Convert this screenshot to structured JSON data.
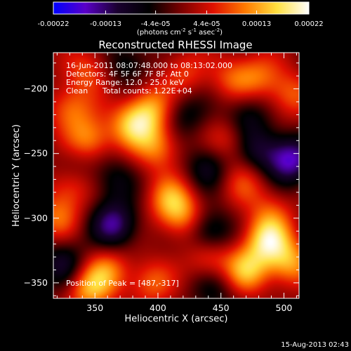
{
  "colorbar": {
    "tick_labels": [
      "-0.00022",
      "-0.00013",
      "-4.4e-05",
      "4.4e-05",
      "0.00013",
      "0.00022"
    ],
    "tick_values": [
      -0.00022,
      -0.00013,
      -4.4e-05,
      4.4e-05,
      0.00013,
      0.00022
    ],
    "range": [
      -0.00022,
      0.00022
    ],
    "unit_label": "(photons cm",
    "unit_exp1": "-2",
    "unit_mid": " s",
    "unit_exp2": "-1",
    "unit_mid2": " asec",
    "unit_exp3": "-2",
    "unit_close": ")",
    "colors": [
      "#0000ff",
      "#5a00c8",
      "#1a0030",
      "#000000",
      "#7a0000",
      "#e01000",
      "#ff7a00",
      "#ffe040",
      "#ffffff"
    ]
  },
  "info": {
    "line1": "16-Jun-2011 08:07:48.000 to 08:13:02.000",
    "line2": "Detectors: 4F 5F 6F 7F 8F, Att 0",
    "line3": "Energy Range: 12.0 - 25.0 keV",
    "line4a": "Clean",
    "line4b": "Total counts: 1.22E+04",
    "peak": "Position of Peak = [487,-317]"
  },
  "footer": {
    "date": "15-Aug-2013 02:43"
  },
  "chart_data": {
    "type": "heatmap",
    "title": "Reconstructed RHESSI Image",
    "xlabel": "Heliocentric X (arcsec)",
    "ylabel": "Heliocentric Y (arcsec)",
    "xlim": [
      317,
      512
    ],
    "ylim": [
      -362,
      -172
    ],
    "xticks": [
      350,
      400,
      450,
      500
    ],
    "yticks": [
      -350,
      -300,
      -250,
      -200
    ],
    "xtick_labels": [
      "350",
      "400",
      "450",
      "500"
    ],
    "ytick_labels": [
      "−350",
      "−300",
      "−250",
      "−200"
    ],
    "peak_position": [
      487,
      -317
    ],
    "sources": [
      {
        "x": 487,
        "y": -317,
        "v": 1.0
      },
      {
        "x": 470,
        "y": -340,
        "v": 0.85
      },
      {
        "x": 505,
        "y": -335,
        "v": 0.75
      },
      {
        "x": 440,
        "y": -330,
        "v": 0.6
      },
      {
        "x": 380,
        "y": -228,
        "v": 0.85
      },
      {
        "x": 395,
        "y": -215,
        "v": 0.7
      },
      {
        "x": 400,
        "y": -245,
        "v": 0.65
      },
      {
        "x": 345,
        "y": -240,
        "v": 0.75
      },
      {
        "x": 330,
        "y": -215,
        "v": 0.6
      },
      {
        "x": 410,
        "y": -285,
        "v": 0.7
      },
      {
        "x": 420,
        "y": -300,
        "v": 0.6
      },
      {
        "x": 345,
        "y": -355,
        "v": 0.75
      },
      {
        "x": 360,
        "y": -340,
        "v": 0.6
      },
      {
        "x": 395,
        "y": -350,
        "v": 0.55
      },
      {
        "x": 320,
        "y": -300,
        "v": 0.55
      },
      {
        "x": 330,
        "y": -275,
        "v": 0.5
      },
      {
        "x": 460,
        "y": -192,
        "v": 0.5
      },
      {
        "x": 455,
        "y": -240,
        "v": 0.45
      },
      {
        "x": 480,
        "y": -190,
        "v": 0.5
      },
      {
        "x": 505,
        "y": -205,
        "v": 0.55
      },
      {
        "x": 345,
        "y": -185,
        "v": 0.5
      },
      {
        "x": 420,
        "y": -188,
        "v": 0.45
      },
      {
        "x": 468,
        "y": -272,
        "v": 0.45
      },
      {
        "x": 490,
        "y": -295,
        "v": 0.4
      },
      {
        "x": 505,
        "y": -255,
        "v": -1.0
      },
      {
        "x": 365,
        "y": -305,
        "v": -0.9
      },
      {
        "x": 440,
        "y": -312,
        "v": -0.75
      },
      {
        "x": 325,
        "y": -335,
        "v": -0.6
      },
      {
        "x": 470,
        "y": -220,
        "v": -0.5
      },
      {
        "x": 440,
        "y": -260,
        "v": -0.55
      },
      {
        "x": 420,
        "y": -220,
        "v": -0.45
      },
      {
        "x": 480,
        "y": -248,
        "v": -0.55
      },
      {
        "x": 365,
        "y": -270,
        "v": -0.4
      },
      {
        "x": 375,
        "y": -180,
        "v": -0.45
      },
      {
        "x": 445,
        "y": -355,
        "v": -0.4
      },
      {
        "x": 335,
        "y": -258,
        "v": -0.3
      }
    ]
  }
}
